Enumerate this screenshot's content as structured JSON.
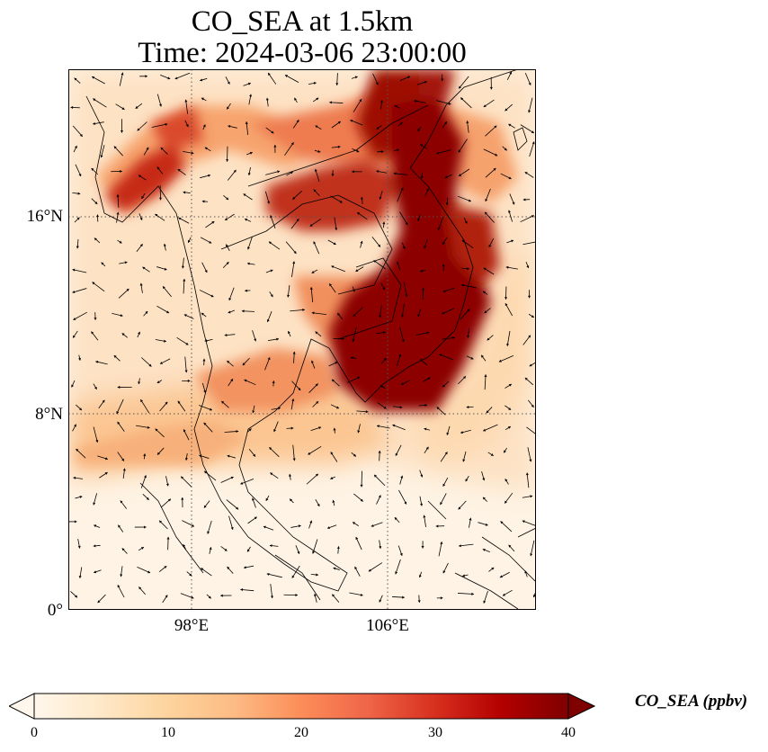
{
  "title": {
    "line1": "CO_SEA at 1.5km",
    "line2": "Time: 2024-03-06 23:00:00"
  },
  "map": {
    "lat_ticks": [
      "16°N",
      "8°N",
      "0°"
    ],
    "lon_ticks": [
      "98°E",
      "106°E"
    ],
    "lon_range": [
      93,
      112
    ],
    "lat_range": [
      0,
      22
    ],
    "gridlines": true,
    "gridline_lons": [
      98,
      106
    ],
    "gridline_lats": [
      8,
      16
    ]
  },
  "colorbar": {
    "label": "CO_SEA (ppbv)",
    "ticks": [
      "0",
      "10",
      "20",
      "30",
      "40"
    ],
    "range": [
      0,
      40
    ],
    "colormap": "OrRd",
    "extend": "both"
  },
  "colors": {
    "low": "#fff7ec",
    "mid": "#f4965e",
    "high": "#7f0000"
  }
}
